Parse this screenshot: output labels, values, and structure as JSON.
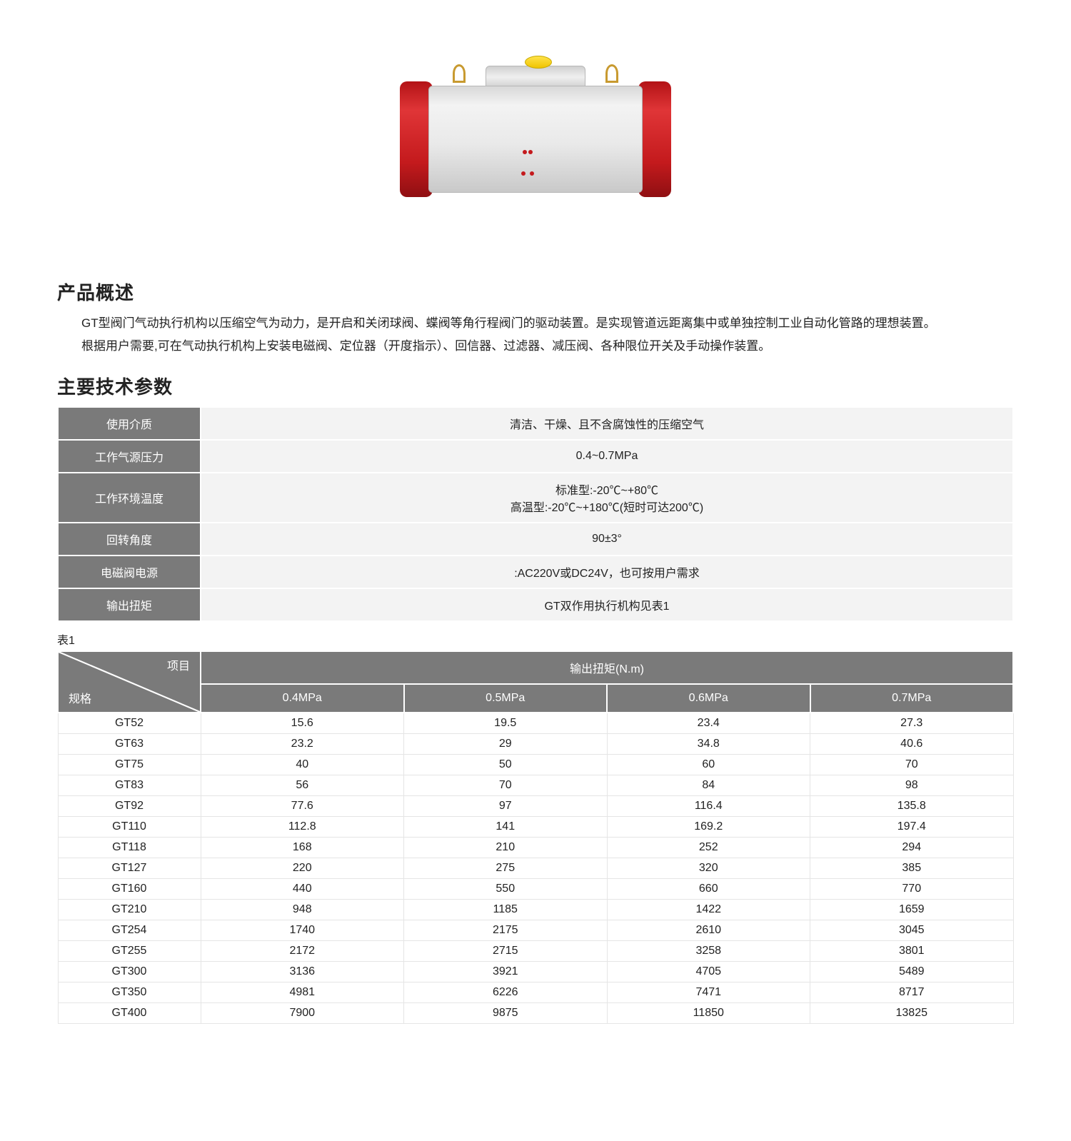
{
  "overview": {
    "title": "产品概述",
    "p1": "GT型阀门气动执行机构以压缩空气为动力，是开启和关闭球阀、蝶阀等角行程阀门的驱动装置。是实现管道远距离集中或单独控制工业自动化管路的理想装置。",
    "p2": "根据用户需要,可在气动执行机构上安装电磁阀、定位器（开度指示）、回信器、过滤器、减压阀、各种限位开关及手动操作装置。"
  },
  "specs": {
    "title": "主要技术参数",
    "rows": [
      {
        "label": "使用介质",
        "value": "清洁、干燥、且不含腐蚀性的压缩空气"
      },
      {
        "label": "工作气源压力",
        "value": "0.4~0.7MPa"
      },
      {
        "label": "工作环境温度",
        "value": "标准型:-20℃~+80℃\n高温型:-20℃~+180℃(短时可达200℃)"
      },
      {
        "label": "回转角度",
        "value": "90±3°"
      },
      {
        "label": "电磁阀电源",
        "value": ":AC220V或DC24V，也可按用户需求"
      },
      {
        "label": "输出扭矩",
        "value": "GT双作用执行机构见表1"
      }
    ],
    "header_bg": "#7a7a7a",
    "value_bg": "#f3f3f3"
  },
  "torque": {
    "table_label": "表1",
    "diag_top": "项目",
    "diag_bot": "规格",
    "group_header": "输出扭矩(N.m)",
    "columns": [
      "0.4MPa",
      "0.5MPa",
      "0.6MPa",
      "0.7MPa"
    ],
    "rows": [
      {
        "spec": "GT52",
        "vals": [
          "15.6",
          "19.5",
          "23.4",
          "27.3"
        ]
      },
      {
        "spec": "GT63",
        "vals": [
          "23.2",
          "29",
          "34.8",
          "40.6"
        ]
      },
      {
        "spec": "GT75",
        "vals": [
          "40",
          "50",
          "60",
          "70"
        ]
      },
      {
        "spec": "GT83",
        "vals": [
          "56",
          "70",
          "84",
          "98"
        ]
      },
      {
        "spec": "GT92",
        "vals": [
          "77.6",
          "97",
          "116.4",
          "135.8"
        ]
      },
      {
        "spec": "GT110",
        "vals": [
          "112.8",
          "141",
          "169.2",
          "197.4"
        ]
      },
      {
        "spec": "GT118",
        "vals": [
          "168",
          "210",
          "252",
          "294"
        ]
      },
      {
        "spec": "GT127",
        "vals": [
          "220",
          "275",
          "320",
          "385"
        ]
      },
      {
        "spec": "GT160",
        "vals": [
          "440",
          "550",
          "660",
          "770"
        ]
      },
      {
        "spec": "GT210",
        "vals": [
          "948",
          "1185",
          "1422",
          "1659"
        ]
      },
      {
        "spec": "GT254",
        "vals": [
          "1740",
          "2175",
          "2610",
          "3045"
        ]
      },
      {
        "spec": "GT255",
        "vals": [
          "2172",
          "2715",
          "3258",
          "3801"
        ]
      },
      {
        "spec": "GT300",
        "vals": [
          "3136",
          "3921",
          "4705",
          "5489"
        ]
      },
      {
        "spec": "GT350",
        "vals": [
          "4981",
          "6226",
          "7471",
          "8717"
        ]
      },
      {
        "spec": "GT400",
        "vals": [
          "7900",
          "9875",
          "11850",
          "13825"
        ]
      }
    ]
  }
}
